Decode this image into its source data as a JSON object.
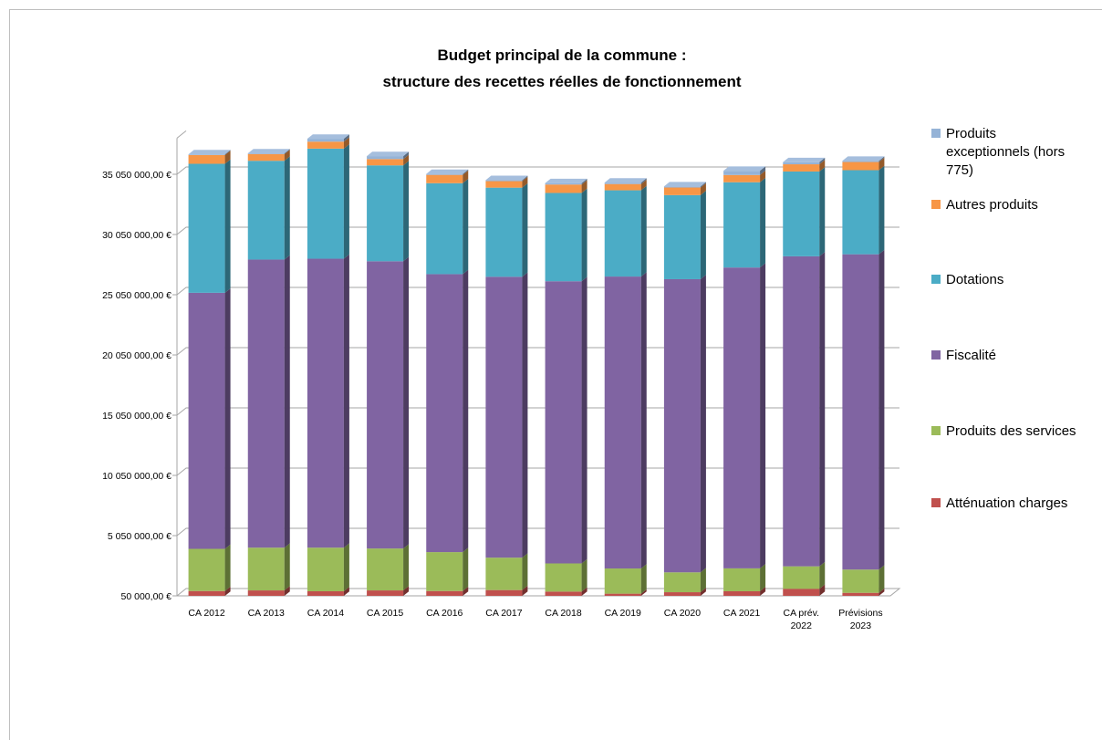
{
  "chart_data": {
    "type": "bar",
    "stacked": true,
    "three_d": true,
    "title_lines": [
      "Budget principal de la commune :",
      "structure des recettes réelles de fonctionnement"
    ],
    "xlabel": "",
    "ylabel": "",
    "ylim": [
      50000,
      38050000
    ],
    "y_ticks": [
      50000,
      5050000,
      10050000,
      15050000,
      20050000,
      25050000,
      30050000,
      35050000
    ],
    "y_tick_labels": [
      "50 000,00 €",
      "5 050 000,00 €",
      "10 050 000,00 €",
      "15 050 000,00 €",
      "20 050 000,00 €",
      "25 050 000,00 €",
      "30 050 000,00 €",
      "35 050 000,00 €"
    ],
    "grid": true,
    "legend_position": "right",
    "categories": [
      [
        "CA 2012"
      ],
      [
        "CA 2013"
      ],
      [
        "CA 2014"
      ],
      [
        "CA 2015"
      ],
      [
        "CA 2016"
      ],
      [
        "CA 2017"
      ],
      [
        "CA 2018"
      ],
      [
        "CA 2019"
      ],
      [
        "CA 2020"
      ],
      [
        "CA 2021"
      ],
      [
        "CA prév.",
        "2022"
      ],
      [
        "Prévisions",
        "2023"
      ]
    ],
    "series": [
      {
        "name": "Atténuation charges",
        "color": "#c0504d",
        "values": [
          400000,
          450000,
          380000,
          450000,
          400000,
          480000,
          350000,
          180000,
          300000,
          380000,
          580000,
          250000
        ]
      },
      {
        "name": "Produits des services",
        "color": "#9bbb59",
        "values": [
          3500000,
          3550000,
          3620000,
          3480000,
          3230000,
          2690000,
          2340000,
          2090000,
          1650000,
          1900000,
          1870000,
          1930000
        ]
      },
      {
        "name": "Fiscalité",
        "color": "#8064a2",
        "values": [
          21260000,
          23920000,
          23990000,
          23850000,
          23080000,
          23320000,
          23430000,
          24240000,
          24340000,
          24980000,
          25740000,
          26180000
        ]
      },
      {
        "name": "Dotations",
        "color": "#4bacc6",
        "values": [
          10710000,
          8200000,
          9140000,
          7960000,
          7550000,
          7400000,
          7330000,
          7160000,
          6980000,
          7080000,
          7040000,
          6980000
        ]
      },
      {
        "name": "Autres produits",
        "color": "#f79646",
        "values": [
          730000,
          560000,
          580000,
          520000,
          690000,
          540000,
          700000,
          520000,
          630000,
          600000,
          600000,
          680000
        ]
      },
      {
        "name": "Produits exceptionnels (hors 775)",
        "legend_lines": [
          "Produits",
          "exceptionnels (hors",
          "775)"
        ],
        "color": "#95b3d7",
        "values": [
          60000,
          60000,
          240000,
          250000,
          80000,
          90000,
          120000,
          120000,
          100000,
          350000,
          180000,
          100000
        ]
      }
    ]
  }
}
